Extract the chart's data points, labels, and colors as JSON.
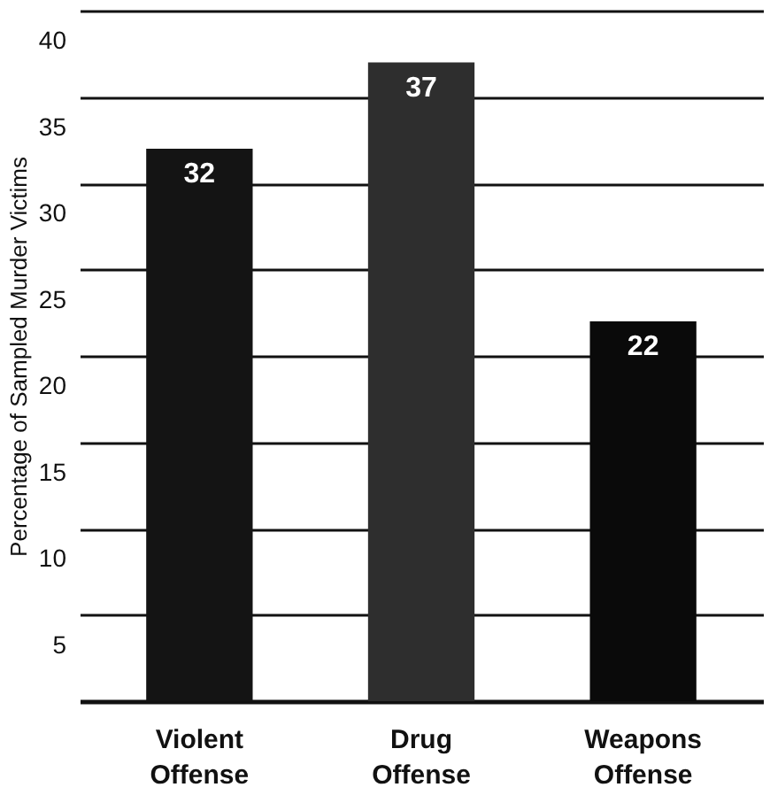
{
  "chart_data": {
    "type": "bar",
    "ylabel": "Percentage of Sampled Murder Victims",
    "categories": [
      "Violent Offense",
      "Drug Offense",
      "Weapons Offense"
    ],
    "values": [
      32,
      37,
      22
    ],
    "colors": [
      "#141414",
      "#2e2e2e",
      "#0a0a0a"
    ],
    "ylim": [
      0,
      40
    ],
    "yticks": [
      5,
      10,
      15,
      20,
      25,
      30,
      35,
      40
    ],
    "grid": "y",
    "data_labels": true
  }
}
